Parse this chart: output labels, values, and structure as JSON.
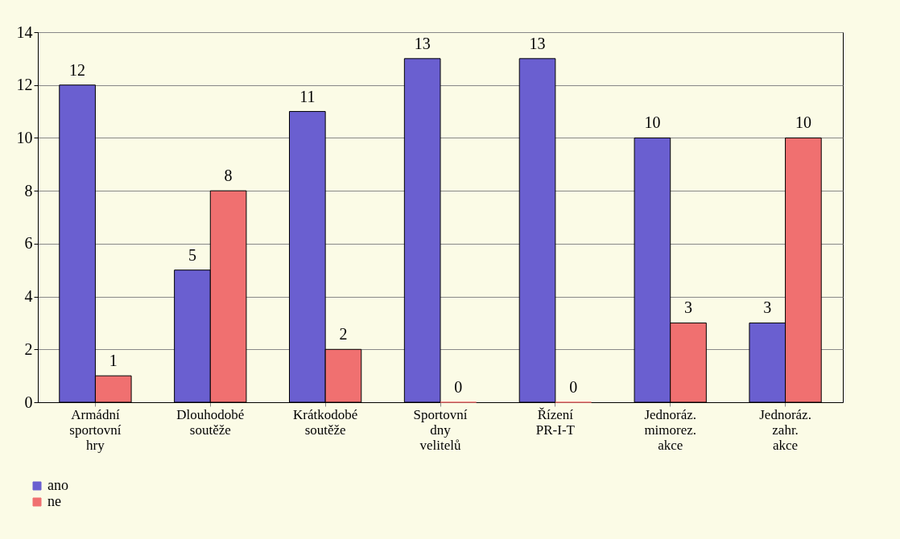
{
  "chart_data": {
    "type": "bar",
    "categories": [
      "Armádní sportovní hry",
      "Dlouhodobé soutěže",
      "Krátkodobé soutěže",
      "Sportovní dny velitelů",
      "Řízení PR-I-T",
      "Jednoráz. mimorez. akce",
      "Jednoráz. zahr. akce"
    ],
    "series": [
      {
        "name": "ano",
        "color": "#6a5fd0",
        "values": [
          12,
          5,
          11,
          13,
          13,
          10,
          3
        ]
      },
      {
        "name": "ne",
        "color": "#f07070",
        "values": [
          1,
          8,
          2,
          0,
          0,
          3,
          10
        ]
      }
    ],
    "ylim": [
      0,
      14
    ],
    "yticks": [
      0,
      2,
      4,
      6,
      8,
      10,
      12,
      14
    ],
    "grid": "y",
    "data_labels": true,
    "legend": "bottom left"
  }
}
